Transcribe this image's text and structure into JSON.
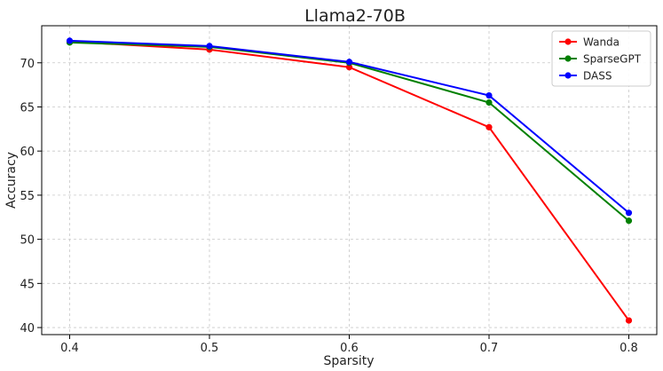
{
  "chart_data": {
    "type": "line",
    "title": "Llama2-70B",
    "xlabel": "Sparsity",
    "ylabel": "Accuracy",
    "x": [
      0.4,
      0.5,
      0.6,
      0.7,
      0.8
    ],
    "x_tick_labels": [
      "0.4",
      "0.5",
      "0.6",
      "0.7",
      "0.8"
    ],
    "xlim": [
      0.38,
      0.82
    ],
    "ylim": [
      39.2,
      74.2
    ],
    "y_ticks": [
      40,
      45,
      50,
      55,
      60,
      65,
      70
    ],
    "y_tick_labels": [
      "40",
      "45",
      "50",
      "55",
      "60",
      "65",
      "70"
    ],
    "grid": true,
    "legend_position": "top-right",
    "series": [
      {
        "name": "Wanda",
        "color": "#ff0000",
        "values": [
          72.4,
          71.5,
          69.5,
          62.7,
          40.8
        ]
      },
      {
        "name": "SparseGPT",
        "color": "#008000",
        "values": [
          72.3,
          71.8,
          70.0,
          65.5,
          52.1
        ]
      },
      {
        "name": "DASS",
        "color": "#0000ff",
        "values": [
          72.5,
          71.9,
          70.1,
          66.3,
          53.0
        ]
      }
    ]
  }
}
